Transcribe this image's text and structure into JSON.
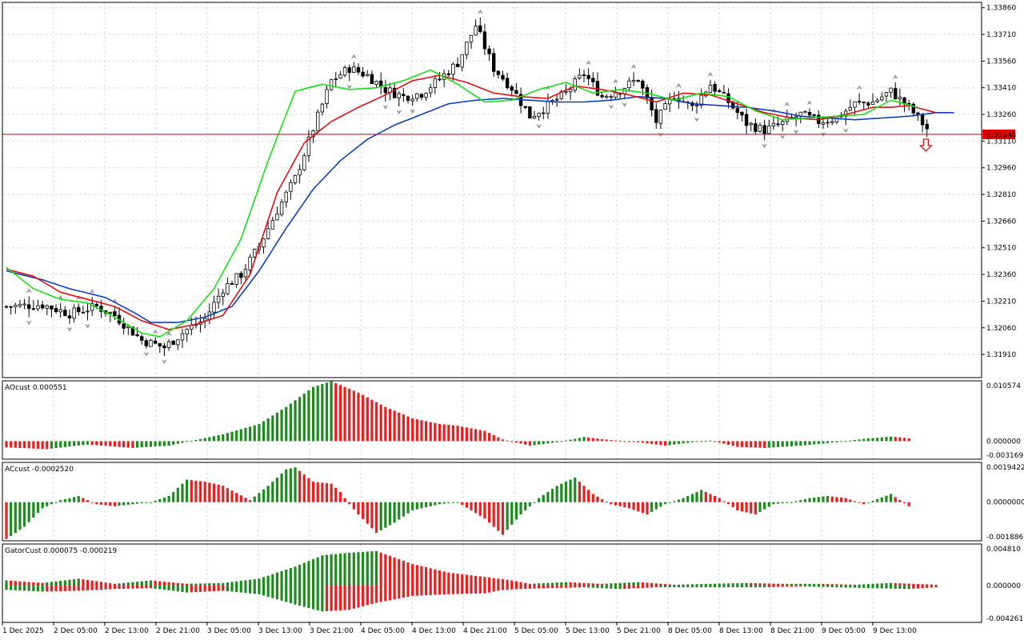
{
  "colors": {
    "background": "#ffffff",
    "grid": "#d9d9d9",
    "bull_body": "#ffffff",
    "bear_body": "#000000",
    "candle_outline": "#000000",
    "jaw": "#0b3fbf",
    "teeth": "#e01010",
    "lips": "#16e016",
    "price_line": "#d00000",
    "price_label_bg": "#e00000",
    "hist_up": "#1e8b1e",
    "hist_down": "#ee1c1c",
    "fractal": "#9a9a9a",
    "arrow": "#e00000"
  },
  "chart_data": [
    {
      "type": "candlestick",
      "panel": "main",
      "yaxis_ticks": [
        "1.33860",
        "1.33710",
        "1.33560",
        "1.33410",
        "1.33260",
        "1.33110",
        "1.32960",
        "1.32810",
        "1.32660",
        "1.32510",
        "1.32360",
        "1.32210",
        "1.32060",
        "1.31910"
      ],
      "ylim": [
        1.3178,
        1.3389
      ],
      "current_price": "1.33148",
      "xaxis_labels": [
        "1 Dec 2025",
        "2 Dec 05:00",
        "2 Dec 13:00",
        "2 Dec 21:00",
        "3 Dec 05:00",
        "3 Dec 13:00",
        "3 Dec 21:00",
        "4 Dec 05:00",
        "4 Dec 13:00",
        "4 Dec 21:00",
        "5 Dec 05:00",
        "5 Dec 13:00",
        "5 Dec 21:00",
        "8 Dec 05:00",
        "8 Dec 13:00",
        "8 Dec 21:00",
        "9 Dec 05:00",
        "9 Dec 13:00"
      ],
      "close_path": [
        [
          0,
          1.3218
        ],
        [
          8,
          1.3219
        ],
        [
          14,
          1.3214
        ],
        [
          20,
          1.3218
        ],
        [
          24,
          1.3213
        ],
        [
          30,
          1.3199
        ],
        [
          35,
          1.3195
        ],
        [
          40,
          1.3205
        ],
        [
          44,
          1.3211
        ],
        [
          48,
          1.3228
        ],
        [
          52,
          1.3236
        ],
        [
          56,
          1.3252
        ],
        [
          60,
          1.3272
        ],
        [
          64,
          1.329
        ],
        [
          68,
          1.3318
        ],
        [
          72,
          1.3345
        ],
        [
          76,
          1.3352
        ],
        [
          80,
          1.3348
        ],
        [
          84,
          1.334
        ],
        [
          88,
          1.3336
        ],
        [
          92,
          1.3338
        ],
        [
          96,
          1.3346
        ],
        [
          100,
          1.3355
        ],
        [
          104,
          1.3376
        ],
        [
          108,
          1.3352
        ],
        [
          112,
          1.3341
        ],
        [
          116,
          1.3325
        ],
        [
          120,
          1.3331
        ],
        [
          124,
          1.3338
        ],
        [
          128,
          1.3349
        ],
        [
          132,
          1.3336
        ],
        [
          136,
          1.334
        ],
        [
          140,
          1.3346
        ],
        [
          144,
          1.3322
        ],
        [
          148,
          1.3337
        ],
        [
          152,
          1.333
        ],
        [
          156,
          1.3343
        ],
        [
          160,
          1.3333
        ],
        [
          164,
          1.3321
        ],
        [
          168,
          1.3317
        ],
        [
          172,
          1.3321
        ],
        [
          176,
          1.3326
        ],
        [
          180,
          1.3322
        ],
        [
          184,
          1.3324
        ],
        [
          188,
          1.3332
        ],
        [
          192,
          1.3333
        ],
        [
          196,
          1.3339
        ],
        [
          200,
          1.333
        ],
        [
          204,
          1.3318
        ]
      ],
      "jaw_path": [
        [
          0,
          1.3238
        ],
        [
          8,
          1.3233
        ],
        [
          14,
          1.3228
        ],
        [
          22,
          1.3223
        ],
        [
          28,
          1.3215
        ],
        [
          32,
          1.3209
        ],
        [
          38,
          1.3209
        ],
        [
          44,
          1.3212
        ],
        [
          50,
          1.3218
        ],
        [
          56,
          1.3238
        ],
        [
          62,
          1.3262
        ],
        [
          68,
          1.3284
        ],
        [
          74,
          1.33
        ],
        [
          80,
          1.3312
        ],
        [
          86,
          1.332
        ],
        [
          92,
          1.3326
        ],
        [
          98,
          1.3332
        ],
        [
          104,
          1.3334
        ],
        [
          110,
          1.3335
        ],
        [
          116,
          1.3334
        ],
        [
          122,
          1.3333
        ],
        [
          128,
          1.3333
        ],
        [
          134,
          1.3334
        ],
        [
          140,
          1.3336
        ],
        [
          146,
          1.3335
        ],
        [
          152,
          1.3332
        ],
        [
          158,
          1.3331
        ],
        [
          164,
          1.333
        ],
        [
          170,
          1.3328
        ],
        [
          176,
          1.3325
        ],
        [
          182,
          1.3324
        ],
        [
          188,
          1.3323
        ],
        [
          194,
          1.3324
        ],
        [
          200,
          1.3325
        ],
        [
          206,
          1.3327
        ],
        [
          210,
          1.3327
        ]
      ],
      "teeth_path": [
        [
          0,
          1.3239
        ],
        [
          6,
          1.3235
        ],
        [
          12,
          1.3226
        ],
        [
          18,
          1.3222
        ],
        [
          24,
          1.3218
        ],
        [
          30,
          1.321
        ],
        [
          36,
          1.3205
        ],
        [
          42,
          1.3208
        ],
        [
          48,
          1.3213
        ],
        [
          54,
          1.3236
        ],
        [
          60,
          1.3282
        ],
        [
          66,
          1.331
        ],
        [
          72,
          1.3322
        ],
        [
          78,
          1.333
        ],
        [
          84,
          1.3337
        ],
        [
          90,
          1.3345
        ],
        [
          96,
          1.3348
        ],
        [
          102,
          1.3344
        ],
        [
          108,
          1.3338
        ],
        [
          114,
          1.3336
        ],
        [
          120,
          1.3335
        ],
        [
          126,
          1.3342
        ],
        [
          132,
          1.334
        ],
        [
          138,
          1.3337
        ],
        [
          144,
          1.3333
        ],
        [
          150,
          1.3338
        ],
        [
          156,
          1.3337
        ],
        [
          162,
          1.3332
        ],
        [
          168,
          1.3327
        ],
        [
          174,
          1.3324
        ],
        [
          180,
          1.3323
        ],
        [
          186,
          1.3326
        ],
        [
          192,
          1.333
        ],
        [
          196,
          1.333
        ],
        [
          200,
          1.3331
        ],
        [
          206,
          1.3327
        ]
      ],
      "lips_path": [
        [
          0,
          1.324
        ],
        [
          6,
          1.3228
        ],
        [
          12,
          1.3222
        ],
        [
          18,
          1.322
        ],
        [
          24,
          1.3212
        ],
        [
          30,
          1.3203
        ],
        [
          34,
          1.3201
        ],
        [
          40,
          1.321
        ],
        [
          46,
          1.3228
        ],
        [
          52,
          1.3256
        ],
        [
          58,
          1.33
        ],
        [
          64,
          1.3339
        ],
        [
          70,
          1.3343
        ],
        [
          76,
          1.334
        ],
        [
          82,
          1.3341
        ],
        [
          88,
          1.3345
        ],
        [
          94,
          1.3351
        ],
        [
          100,
          1.3343
        ],
        [
          106,
          1.3333
        ],
        [
          112,
          1.3334
        ],
        [
          118,
          1.334
        ],
        [
          124,
          1.3344
        ],
        [
          130,
          1.3338
        ],
        [
          136,
          1.334
        ],
        [
          142,
          1.3338
        ],
        [
          148,
          1.3334
        ],
        [
          154,
          1.3338
        ],
        [
          160,
          1.3336
        ],
        [
          166,
          1.3328
        ],
        [
          172,
          1.3323
        ],
        [
          178,
          1.3324
        ],
        [
          184,
          1.3325
        ],
        [
          190,
          1.3326
        ],
        [
          196,
          1.3334
        ],
        [
          202,
          1.333
        ]
      ]
    },
    {
      "type": "histogram",
      "panel": "ao",
      "label": "AOcust 0.000551",
      "yaxis_ticks": [
        "0.010574",
        "0.000000",
        "-0.003169"
      ],
      "ylim": [
        -0.003169,
        0.010574
      ],
      "path": [
        [
          0,
          -0.0011
        ],
        [
          9,
          -0.0014
        ],
        [
          18,
          -0.0006
        ],
        [
          28,
          -0.0012
        ],
        [
          36,
          -0.0008
        ],
        [
          42,
          0.0002
        ],
        [
          48,
          0.0012
        ],
        [
          56,
          0.003
        ],
        [
          62,
          0.006
        ],
        [
          68,
          0.0095
        ],
        [
          72,
          0.0105
        ],
        [
          78,
          0.0085
        ],
        [
          84,
          0.006
        ],
        [
          90,
          0.004
        ],
        [
          96,
          0.003
        ],
        [
          100,
          0.0027
        ],
        [
          106,
          0.0018
        ],
        [
          110,
          0.0003
        ],
        [
          116,
          -0.0008
        ],
        [
          122,
          -0.0002
        ],
        [
          128,
          0.0007
        ],
        [
          134,
          0.0002
        ],
        [
          140,
          -0.0002
        ],
        [
          146,
          -0.0008
        ],
        [
          152,
          -0.0002
        ],
        [
          156,
          0.0001
        ],
        [
          162,
          -0.001
        ],
        [
          168,
          -0.0012
        ],
        [
          176,
          -0.0008
        ],
        [
          184,
          -0.0002
        ],
        [
          190,
          0.0004
        ],
        [
          196,
          0.0008
        ],
        [
          200,
          0.0005
        ]
      ]
    },
    {
      "type": "histogram",
      "panel": "ac",
      "label": "ACcust -0.0002520",
      "yaxis_ticks": [
        "0.0019422",
        "0.0000000",
        "-0.0018869"
      ],
      "ylim": [
        -0.0018869,
        0.0019422
      ],
      "path": [
        [
          0,
          -0.0018
        ],
        [
          4,
          -0.0012
        ],
        [
          8,
          -0.0003
        ],
        [
          12,
          0.0001
        ],
        [
          16,
          0.0003
        ],
        [
          20,
          -0.0001
        ],
        [
          24,
          -0.0002
        ],
        [
          28,
          -0.0001
        ],
        [
          32,
          0.0
        ],
        [
          36,
          0.0003
        ],
        [
          40,
          0.0011
        ],
        [
          44,
          0.001
        ],
        [
          48,
          0.0008
        ],
        [
          54,
          0.0001
        ],
        [
          58,
          0.0008
        ],
        [
          62,
          0.0016
        ],
        [
          64,
          0.0017
        ],
        [
          68,
          0.001
        ],
        [
          72,
          0.0009
        ],
        [
          74,
          0.0005
        ],
        [
          76,
          -0.0001
        ],
        [
          78,
          -0.0006
        ],
        [
          82,
          -0.0015
        ],
        [
          86,
          -0.001
        ],
        [
          90,
          -0.0004
        ],
        [
          96,
          -0.0001
        ],
        [
          100,
          0.0
        ],
        [
          106,
          -0.0008
        ],
        [
          110,
          -0.0016
        ],
        [
          114,
          -0.0006
        ],
        [
          118,
          0.0002
        ],
        [
          122,
          0.0008
        ],
        [
          126,
          0.0012
        ],
        [
          130,
          0.0004
        ],
        [
          134,
          -0.0001
        ],
        [
          138,
          -0.0003
        ],
        [
          142,
          -0.0006
        ],
        [
          146,
          -0.0001
        ],
        [
          150,
          0.0002
        ],
        [
          154,
          0.0006
        ],
        [
          158,
          0.0002
        ],
        [
          162,
          -0.0004
        ],
        [
          166,
          -0.0006
        ],
        [
          170,
          -0.0001
        ],
        [
          174,
          0.0
        ],
        [
          178,
          0.0002
        ],
        [
          182,
          0.0003
        ],
        [
          186,
          0.0002
        ],
        [
          190,
          -0.0001
        ],
        [
          196,
          0.0004
        ],
        [
          200,
          -0.0002
        ]
      ]
    },
    {
      "type": "histogram",
      "panel": "gator",
      "label": "GatorCust 0.000075 -0.000219",
      "yaxis_ticks": [
        "0.004810",
        "0.000000",
        "-0.004261"
      ],
      "ylim": [
        -0.004261,
        0.00481
      ],
      "upper_path": [
        [
          0,
          0.0006
        ],
        [
          8,
          0.0003
        ],
        [
          16,
          0.0008
        ],
        [
          24,
          0.0002
        ],
        [
          32,
          0.0006
        ],
        [
          40,
          0.0002
        ],
        [
          48,
          0.0003
        ],
        [
          56,
          0.0008
        ],
        [
          64,
          0.0022
        ],
        [
          70,
          0.0035
        ],
        [
          76,
          0.0038
        ],
        [
          82,
          0.004
        ],
        [
          90,
          0.0025
        ],
        [
          98,
          0.0015
        ],
        [
          106,
          0.001
        ],
        [
          112,
          0.0006
        ],
        [
          116,
          0.0002
        ],
        [
          124,
          0.0004
        ],
        [
          132,
          0.0002
        ],
        [
          140,
          0.0004
        ],
        [
          148,
          0.0001
        ],
        [
          156,
          0.0002
        ],
        [
          164,
          0.0003
        ],
        [
          172,
          0.0002
        ],
        [
          180,
          0.0002
        ],
        [
          188,
          0.0001
        ],
        [
          196,
          0.0003
        ],
        [
          206,
          0.0001
        ]
      ],
      "lower_path": [
        [
          0,
          -0.0005
        ],
        [
          8,
          -0.0007
        ],
        [
          16,
          -0.0006
        ],
        [
          24,
          -0.0004
        ],
        [
          32,
          -0.0003
        ],
        [
          40,
          -0.0008
        ],
        [
          48,
          -0.0006
        ],
        [
          56,
          -0.001
        ],
        [
          64,
          -0.0022
        ],
        [
          70,
          -0.003
        ],
        [
          76,
          -0.0028
        ],
        [
          82,
          -0.002
        ],
        [
          90,
          -0.0012
        ],
        [
          98,
          -0.001
        ],
        [
          106,
          -0.0009
        ],
        [
          110,
          -0.0005
        ],
        [
          114,
          -0.0004
        ],
        [
          120,
          -0.0003
        ],
        [
          128,
          -0.0002
        ],
        [
          136,
          -0.0004
        ],
        [
          144,
          -0.0002
        ],
        [
          152,
          -0.0002
        ],
        [
          160,
          -0.0002
        ],
        [
          168,
          -0.0002
        ],
        [
          176,
          -0.0001
        ],
        [
          184,
          -0.0002
        ],
        [
          192,
          -0.0003
        ],
        [
          200,
          -0.0004
        ],
        [
          206,
          -0.0002
        ]
      ]
    }
  ]
}
